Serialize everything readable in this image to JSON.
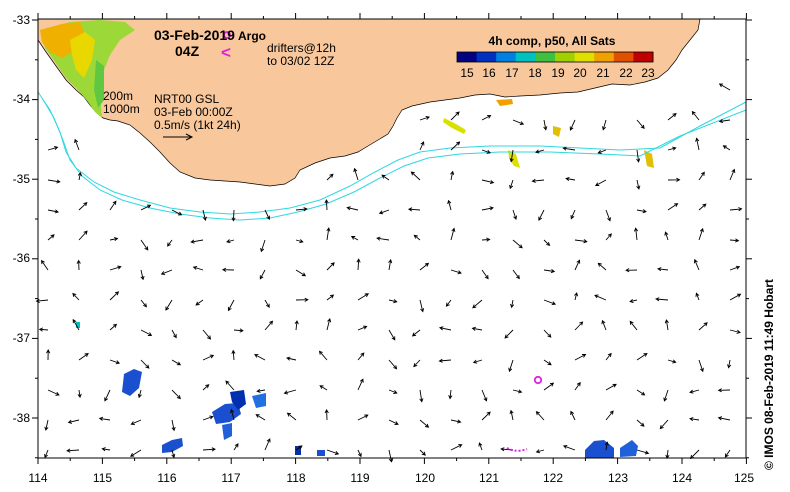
{
  "map": {
    "date": "03-Feb-2019",
    "time": "04Z",
    "legend": {
      "argo_label": "Argo",
      "drifters_line1": "drifters@12h",
      "drifters_line2": "to 03/02 12Z",
      "drifter_glyph": "<",
      "argo_color": "#e020e0",
      "drifter_color": "#e020e0"
    },
    "colorbar": {
      "title": "4h comp, p50, All Sats",
      "ticks": [
        "15",
        "16",
        "17",
        "18",
        "19",
        "20",
        "21",
        "22",
        "23"
      ],
      "colors": [
        "#000080",
        "#0030c0",
        "#0080e0",
        "#00c0c0",
        "#40c040",
        "#a0d000",
        "#e0e000",
        "#f0a000",
        "#e05000",
        "#c00000"
      ]
    },
    "isobaths": {
      "line1": "200m",
      "line2": "1000m"
    },
    "product": {
      "line1": "NRT00 GSL",
      "line2": "03-Feb 00:00Z",
      "scale": "0.5m/s (1kt 24h)"
    },
    "axes": {
      "x_ticks": [
        "114",
        "115",
        "116",
        "117",
        "118",
        "119",
        "120",
        "121",
        "122",
        "123",
        "124",
        "125"
      ],
      "y_ticks": [
        "-33",
        "-34",
        "-35",
        "-36",
        "-37",
        "-38"
      ]
    },
    "credit": "©  IMOS 08-Feb-2019 11:49 Hobart",
    "colors": {
      "land": "#f8c89c",
      "isobath": "#30d8e0",
      "frame": "#000000"
    }
  }
}
